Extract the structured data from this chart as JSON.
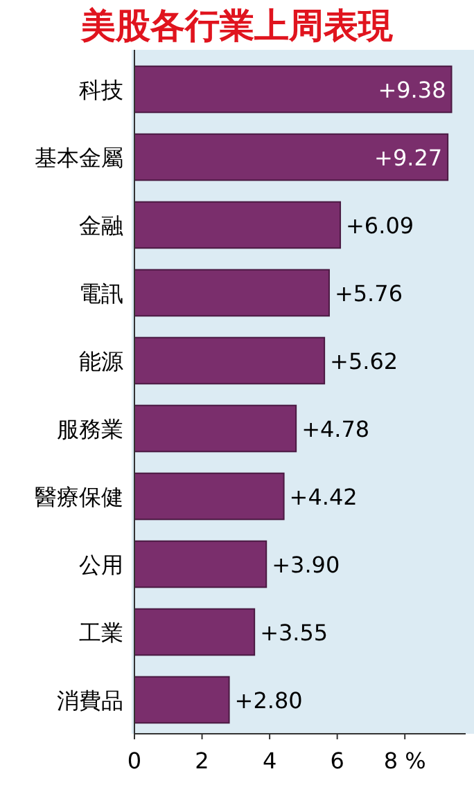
{
  "chart_data": {
    "type": "bar",
    "orientation": "horizontal",
    "title": "美股各行業上周表現",
    "categories": [
      "科技",
      "基本金屬",
      "金融",
      "電訊",
      "能源",
      "服務業",
      "醫療保健",
      "公用",
      "工業",
      "消費品"
    ],
    "values": [
      9.38,
      9.27,
      6.09,
      5.76,
      5.62,
      4.78,
      4.42,
      3.9,
      3.55,
      2.8
    ],
    "value_labels": [
      "+9.38",
      "+9.27",
      "+6.09",
      "+5.76",
      "+5.62",
      "+4.78",
      "+4.42",
      "+3.90",
      "+3.55",
      "+2.80"
    ],
    "color": "#7a2e6c",
    "xlim": [
      0,
      9.8
    ],
    "xticks": [
      0,
      2,
      4,
      6,
      {
        "value": 8,
        "label": "8 %"
      }
    ]
  }
}
